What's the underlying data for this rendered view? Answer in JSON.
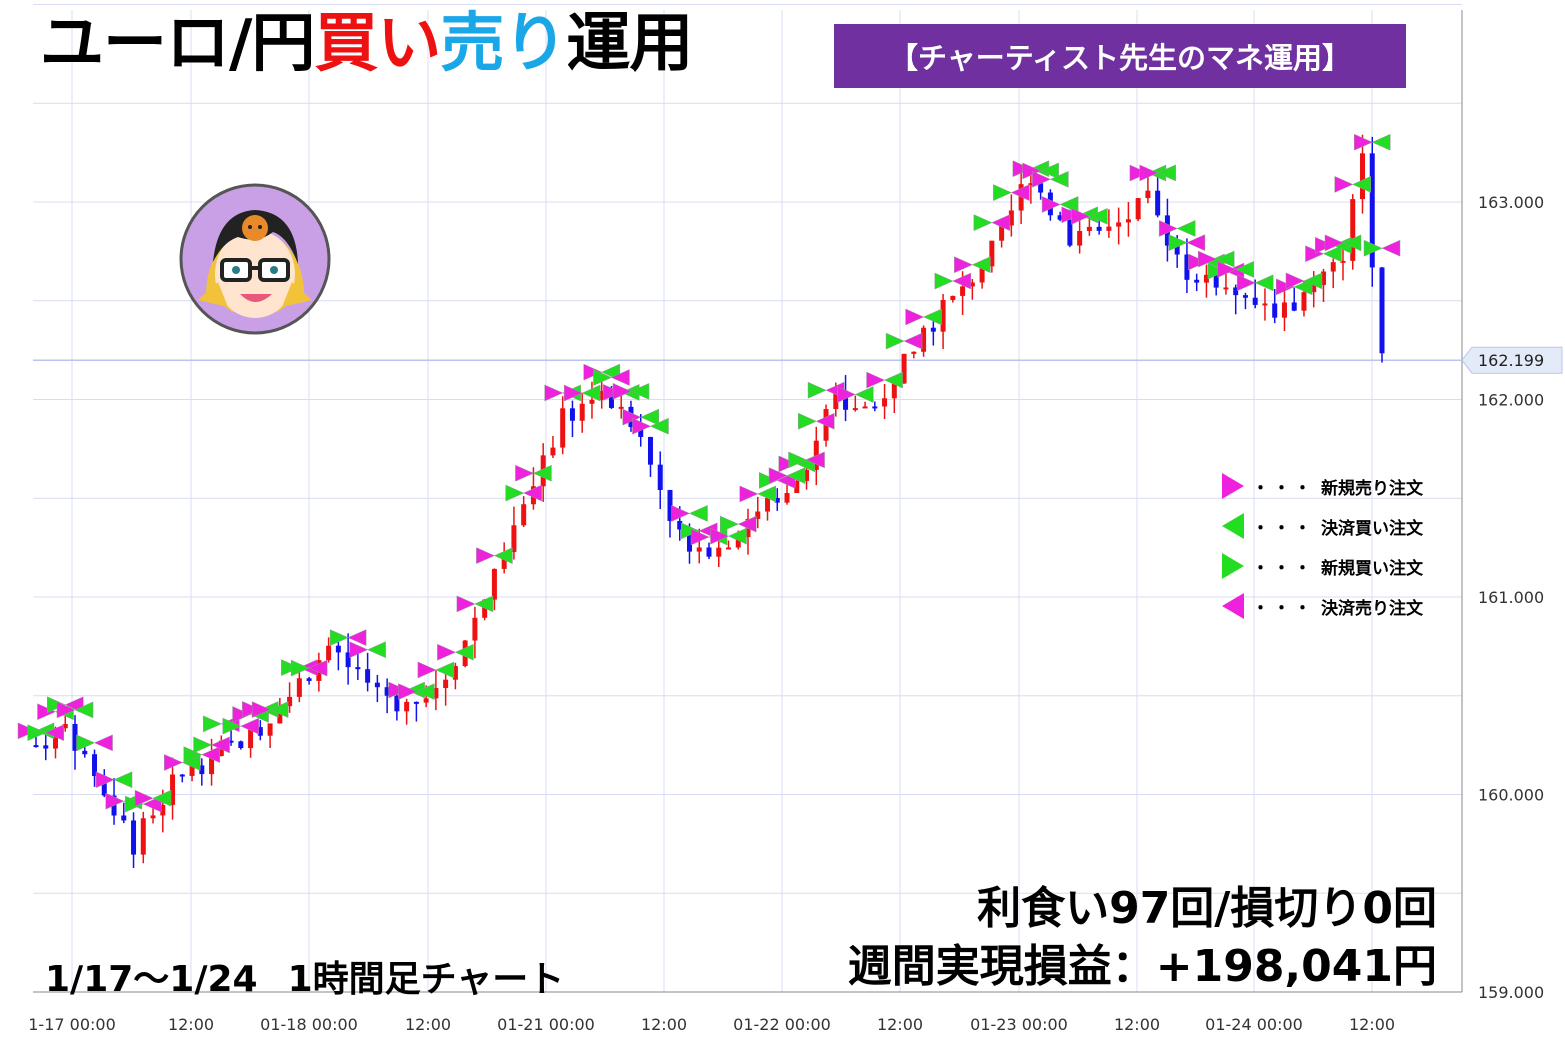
{
  "header": {
    "title_part1": "ユーロ/円",
    "title_part2": "買い",
    "title_part3": "売り",
    "title_part4": "運用",
    "badge": "【チャーティスト先生のマネ運用】"
  },
  "footer": {
    "period": "1/17～1/24",
    "chart_type": "1時間足チャート",
    "stats_line1": "利食い97回/損切り0回",
    "stats_line2": "週間実現損益：+198,041円"
  },
  "legend": {
    "dots": "・・・",
    "items": [
      {
        "label": "新規売り注文",
        "color": "#ee22dd",
        "direction": "right"
      },
      {
        "label": "決済買い注文",
        "color": "#22dd22",
        "direction": "left"
      },
      {
        "label": "新規買い注文",
        "color": "#22dd22",
        "direction": "right"
      },
      {
        "label": "決済売り注文",
        "color": "#ee22dd",
        "direction": "left"
      }
    ]
  },
  "colors": {
    "up_candle": "#ee1111",
    "down_candle": "#1111ee",
    "sell_marker": "#ee22dd",
    "buy_marker": "#22dd22",
    "grid": "#d8dcf5",
    "current_price_line": "#b9c4ef"
  },
  "icons": {
    "avatar": "teacher-avatar-icon"
  },
  "chart_data": {
    "type": "candlestick",
    "title": "",
    "xlabel": "",
    "ylabel": "",
    "ylim": [
      159.0,
      164.0
    ],
    "y_ticks": [
      "159.000",
      "160.000",
      "161.000",
      "162.000",
      "163.000"
    ],
    "y_tick_values": [
      159.0,
      160.0,
      161.0,
      162.0,
      163.0
    ],
    "x_ticks": [
      "1-17 00:00",
      "12:00",
      "01-18 00:00",
      "12:00",
      "01-21 00:00",
      "12:00",
      "01-22 00:00",
      "12:00",
      "01-23 00:00",
      "12:00",
      "01-24 00:00",
      "12:00"
    ],
    "current_price": "162.199",
    "current_price_value": 162.199,
    "grid": true,
    "waypoints": [
      [
        0,
        160.25
      ],
      [
        3,
        160.35
      ],
      [
        6,
        160.1
      ],
      [
        10,
        159.75
      ],
      [
        14,
        160.05
      ],
      [
        18,
        160.2
      ],
      [
        22,
        160.3
      ],
      [
        26,
        160.5
      ],
      [
        30,
        160.75
      ],
      [
        34,
        160.55
      ],
      [
        38,
        160.45
      ],
      [
        42,
        160.6
      ],
      [
        48,
        161.2
      ],
      [
        54,
        161.9
      ],
      [
        58,
        162.05
      ],
      [
        62,
        161.8
      ],
      [
        66,
        161.3
      ],
      [
        70,
        161.25
      ],
      [
        74,
        161.45
      ],
      [
        78,
        161.6
      ],
      [
        82,
        162.0
      ],
      [
        86,
        161.95
      ],
      [
        90,
        162.3
      ],
      [
        94,
        162.5
      ],
      [
        98,
        162.75
      ],
      [
        102,
        163.15
      ],
      [
        106,
        162.8
      ],
      [
        110,
        162.85
      ],
      [
        114,
        163.0
      ],
      [
        118,
        162.65
      ],
      [
        122,
        162.6
      ],
      [
        126,
        162.45
      ],
      [
        130,
        162.5
      ],
      [
        134,
        162.75
      ],
      [
        136,
        163.25
      ],
      [
        138,
        162.199
      ]
    ],
    "markers_note": "sell/buy triangle markers drawn along the candles"
  }
}
